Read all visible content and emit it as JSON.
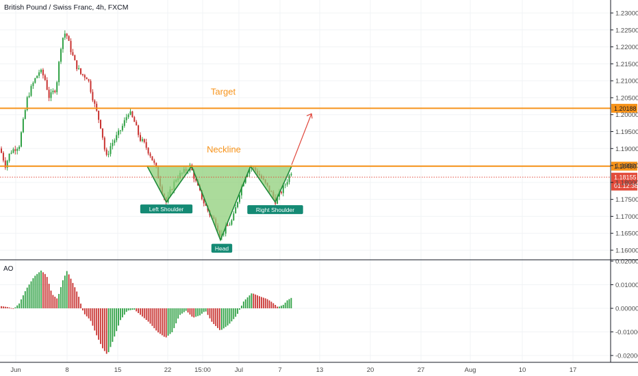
{
  "header": {
    "symbol_title": "British Pound / Swiss Franc, 4h, FXCM"
  },
  "colors": {
    "up": "#2ea043",
    "down": "#c8312f",
    "orange": "#f7931a",
    "pattern_fill": "#8fcf7a",
    "pattern_stroke": "#1e8a3a",
    "badge": "#148a74",
    "price_tag": "#e24b3b",
    "arrow": "#e0453a",
    "grid": "#f0f3f5"
  },
  "chart_data": [
    {
      "type": "candlestick",
      "title": "British Pound / Swiss Franc, 4h, FXCM",
      "x_tick_labels": [
        "Jun",
        "8",
        "15",
        "22",
        "15:00",
        "Jul",
        "7",
        "13",
        "20",
        "27",
        "Aug",
        "10",
        "17"
      ],
      "y_tick_labels": [
        "1.23000",
        "1.22500",
        "1.22000",
        "1.21500",
        "1.21000",
        "1.20500",
        "1.20000",
        "1.19500",
        "1.19000",
        "1.18500",
        "1.18000",
        "1.17500",
        "1.17000",
        "1.16500",
        "1.16000"
      ],
      "ylim": [
        1.1575,
        1.2325
      ],
      "price_path": [
        [
          0,
          1.19
        ],
        [
          8,
          1.185
        ],
        [
          15,
          1.189
        ],
        [
          28,
          1.191
        ],
        [
          40,
          1.205
        ],
        [
          50,
          1.21
        ],
        [
          58,
          1.213
        ],
        [
          65,
          1.211
        ],
        [
          72,
          1.205
        ],
        [
          82,
          1.208
        ],
        [
          90,
          1.222
        ],
        [
          96,
          1.2245
        ],
        [
          102,
          1.22
        ],
        [
          110,
          1.215
        ],
        [
          118,
          1.212
        ],
        [
          128,
          1.211
        ],
        [
          138,
          1.203
        ],
        [
          148,
          1.196
        ],
        [
          155,
          1.187
        ],
        [
          162,
          1.191
        ],
        [
          172,
          1.194
        ],
        [
          180,
          1.197
        ],
        [
          188,
          1.201
        ],
        [
          196,
          1.198
        ],
        [
          204,
          1.193
        ],
        [
          212,
          1.191
        ],
        [
          220,
          1.188
        ],
        [
          228,
          1.184
        ],
        [
          236,
          1.178
        ],
        [
          243,
          1.174
        ],
        [
          250,
          1.178
        ],
        [
          258,
          1.1815
        ],
        [
          268,
          1.183
        ],
        [
          278,
          1.1848
        ],
        [
          288,
          1.179
        ],
        [
          298,
          1.174
        ],
        [
          308,
          1.17
        ],
        [
          316,
          1.168
        ],
        [
          322,
          1.164
        ],
        [
          330,
          1.1665
        ],
        [
          340,
          1.169
        ],
        [
          350,
          1.177
        ],
        [
          358,
          1.182
        ],
        [
          366,
          1.1848
        ],
        [
          376,
          1.183
        ],
        [
          386,
          1.18
        ],
        [
          396,
          1.177
        ],
        [
          402,
          1.1745
        ],
        [
          410,
          1.177
        ],
        [
          418,
          1.18
        ],
        [
          426,
          1.1835
        ]
      ],
      "horizontal_levels": [
        {
          "label": "Target",
          "value": 1.20188,
          "tag": "1.20188"
        },
        {
          "label": "Neckline",
          "value": 1.1848,
          "tag": "1.18480"
        }
      ],
      "current_price": {
        "value": 1.18155,
        "tag": "1.18155",
        "countdown": "01:12:38"
      },
      "pattern": {
        "name": "Inverse Head and Shoulders",
        "labels": [
          "Left Shoulder",
          "Head",
          "Right Shoulder"
        ],
        "points": [
          {
            "x": 215,
            "y": 1.1848
          },
          {
            "x": 243,
            "y": 1.1742
          },
          {
            "x": 280,
            "y": 1.1848
          },
          {
            "x": 322,
            "y": 1.163
          },
          {
            "x": 366,
            "y": 1.1848
          },
          {
            "x": 402,
            "y": 1.1742
          },
          {
            "x": 426,
            "y": 1.1848
          }
        ]
      }
    },
    {
      "type": "bar",
      "title": "AO",
      "y_tick_labels": [
        "0.02000",
        "0.01000",
        "0.00000",
        "-0.01000",
        "-0.02000"
      ],
      "ylim": [
        -0.0215,
        0.0215
      ],
      "ao_path": [
        [
          0,
          0.001
        ],
        [
          12,
          0.0005
        ],
        [
          20,
          -0.0002
        ],
        [
          28,
          0.002
        ],
        [
          38,
          0.008
        ],
        [
          50,
          0.0135
        ],
        [
          60,
          0.016
        ],
        [
          68,
          0.014
        ],
        [
          76,
          0.006
        ],
        [
          84,
          0.004
        ],
        [
          92,
          0.012
        ],
        [
          98,
          0.016
        ],
        [
          106,
          0.011
        ],
        [
          114,
          0.006
        ],
        [
          122,
          -0.002
        ],
        [
          132,
          -0.005
        ],
        [
          142,
          -0.012
        ],
        [
          150,
          -0.017
        ],
        [
          157,
          -0.0198
        ],
        [
          166,
          -0.013
        ],
        [
          176,
          -0.005
        ],
        [
          186,
          -0.001
        ],
        [
          196,
          -0.0005
        ],
        [
          206,
          -0.003
        ],
        [
          218,
          -0.006
        ],
        [
          230,
          -0.01
        ],
        [
          242,
          -0.0125
        ],
        [
          252,
          -0.01
        ],
        [
          262,
          -0.003
        ],
        [
          272,
          -0.001
        ],
        [
          282,
          -0.004
        ],
        [
          292,
          -0.003
        ],
        [
          300,
          -0.001
        ],
        [
          310,
          -0.006
        ],
        [
          322,
          -0.0095
        ],
        [
          334,
          -0.007
        ],
        [
          346,
          -0.003
        ],
        [
          356,
          0.003
        ],
        [
          368,
          0.0065
        ],
        [
          380,
          0.005
        ],
        [
          390,
          0.004
        ],
        [
          398,
          0.0025
        ],
        [
          406,
          0.0005
        ],
        [
          414,
          0.0015
        ],
        [
          420,
          0.0035
        ],
        [
          426,
          0.0045
        ]
      ]
    }
  ]
}
